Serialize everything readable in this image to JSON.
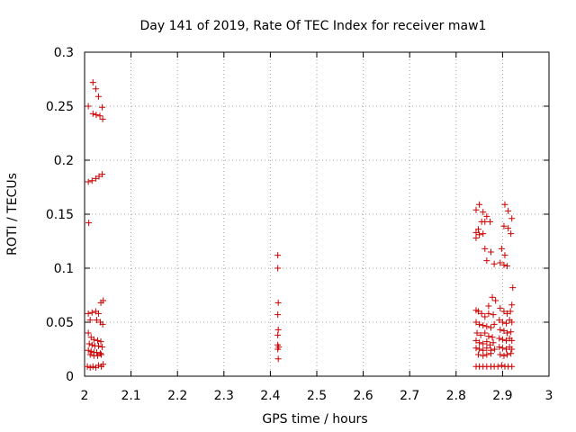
{
  "chart_data": {
    "type": "scatter",
    "title": "Day 141 of 2019, Rate Of TEC Index for receiver maw1",
    "xlabel": "GPS time / hours",
    "ylabel": "ROTI / TECUs",
    "xlim": [
      2,
      3
    ],
    "ylim": [
      0,
      0.3
    ],
    "grid": true,
    "marker": "+",
    "marker_color": "#cc0000",
    "x_ticks": [
      2,
      2.1,
      2.2,
      2.3,
      2.4,
      2.5,
      2.6,
      2.7,
      2.8,
      2.9,
      3
    ],
    "x_tick_labels": [
      "2",
      "2.1",
      "2.2",
      "2.3",
      "2.4",
      "2.5",
      "2.6",
      "2.7",
      "2.8",
      "2.9",
      "3"
    ],
    "y_ticks": [
      0,
      0.05,
      0.1,
      0.15,
      0.2,
      0.25,
      0.3
    ],
    "y_tick_labels": [
      "0",
      "0.05",
      "0.1",
      "0.15",
      "0.2",
      "0.25",
      "0.3"
    ],
    "series": [
      {
        "name": "ROTI",
        "points": [
          [
            2.008,
            0.25
          ],
          [
            2.018,
            0.272
          ],
          [
            2.024,
            0.266
          ],
          [
            2.03,
            0.259
          ],
          [
            2.038,
            0.249
          ],
          [
            2.018,
            0.243
          ],
          [
            2.025,
            0.242
          ],
          [
            2.033,
            0.241
          ],
          [
            2.039,
            0.238
          ],
          [
            2.008,
            0.18
          ],
          [
            2.016,
            0.181
          ],
          [
            2.024,
            0.183
          ],
          [
            2.031,
            0.185
          ],
          [
            2.038,
            0.187
          ],
          [
            2.009,
            0.142
          ],
          [
            2.035,
            0.068
          ],
          [
            2.04,
            0.07
          ],
          [
            2.008,
            0.058
          ],
          [
            2.016,
            0.059
          ],
          [
            2.024,
            0.06
          ],
          [
            2.03,
            0.058
          ],
          [
            2.012,
            0.052
          ],
          [
            2.026,
            0.052
          ],
          [
            2.034,
            0.05
          ],
          [
            2.039,
            0.048
          ],
          [
            2.008,
            0.04
          ],
          [
            2.014,
            0.036
          ],
          [
            2.02,
            0.034
          ],
          [
            2.028,
            0.033
          ],
          [
            2.035,
            0.032
          ],
          [
            2.01,
            0.03
          ],
          [
            2.016,
            0.029
          ],
          [
            2.022,
            0.028
          ],
          [
            2.03,
            0.028
          ],
          [
            2.038,
            0.027
          ],
          [
            2.008,
            0.024
          ],
          [
            2.014,
            0.023
          ],
          [
            2.02,
            0.022
          ],
          [
            2.026,
            0.022
          ],
          [
            2.034,
            0.021
          ],
          [
            2.012,
            0.02
          ],
          [
            2.02,
            0.019
          ],
          [
            2.028,
            0.019
          ],
          [
            2.036,
            0.02
          ],
          [
            2.006,
            0.009
          ],
          [
            2.012,
            0.008
          ],
          [
            2.018,
            0.009
          ],
          [
            2.024,
            0.008
          ],
          [
            2.03,
            0.01
          ],
          [
            2.036,
            0.009
          ],
          [
            2.04,
            0.011
          ],
          [
            2.416,
            0.112
          ],
          [
            2.416,
            0.1
          ],
          [
            2.417,
            0.068
          ],
          [
            2.416,
            0.057
          ],
          [
            2.417,
            0.043
          ],
          [
            2.416,
            0.038
          ],
          [
            2.416,
            0.029
          ],
          [
            2.418,
            0.027
          ],
          [
            2.416,
            0.025
          ],
          [
            2.417,
            0.016
          ],
          [
            2.85,
            0.159
          ],
          [
            2.843,
            0.154
          ],
          [
            2.858,
            0.152
          ],
          [
            2.866,
            0.148
          ],
          [
            2.855,
            0.143
          ],
          [
            2.862,
            0.143
          ],
          [
            2.873,
            0.143
          ],
          [
            2.848,
            0.136
          ],
          [
            2.843,
            0.133
          ],
          [
            2.85,
            0.131
          ],
          [
            2.858,
            0.132
          ],
          [
            2.843,
            0.128
          ],
          [
            2.862,
            0.118
          ],
          [
            2.875,
            0.115
          ],
          [
            2.866,
            0.107
          ],
          [
            2.882,
            0.104
          ],
          [
            2.878,
            0.073
          ],
          [
            2.885,
            0.07
          ],
          [
            2.87,
            0.065
          ],
          [
            2.843,
            0.061
          ],
          [
            2.848,
            0.06
          ],
          [
            2.855,
            0.058
          ],
          [
            2.862,
            0.055
          ],
          [
            2.87,
            0.058
          ],
          [
            2.88,
            0.057
          ],
          [
            2.843,
            0.05
          ],
          [
            2.85,
            0.048
          ],
          [
            2.858,
            0.047
          ],
          [
            2.866,
            0.046
          ],
          [
            2.875,
            0.045
          ],
          [
            2.882,
            0.048
          ],
          [
            2.845,
            0.04
          ],
          [
            2.853,
            0.038
          ],
          [
            2.862,
            0.04
          ],
          [
            2.87,
            0.037
          ],
          [
            2.878,
            0.036
          ],
          [
            2.843,
            0.033
          ],
          [
            2.85,
            0.031
          ],
          [
            2.858,
            0.03
          ],
          [
            2.866,
            0.032
          ],
          [
            2.873,
            0.029
          ],
          [
            2.88,
            0.031
          ],
          [
            2.843,
            0.026
          ],
          [
            2.85,
            0.025
          ],
          [
            2.858,
            0.024
          ],
          [
            2.866,
            0.026
          ],
          [
            2.875,
            0.024
          ],
          [
            2.883,
            0.025
          ],
          [
            2.848,
            0.02
          ],
          [
            2.858,
            0.019
          ],
          [
            2.866,
            0.02
          ],
          [
            2.875,
            0.021
          ],
          [
            2.843,
            0.009
          ],
          [
            2.85,
            0.009
          ],
          [
            2.858,
            0.009
          ],
          [
            2.866,
            0.009
          ],
          [
            2.875,
            0.009
          ],
          [
            2.882,
            0.009
          ],
          [
            2.89,
            0.009
          ],
          [
            2.905,
            0.159
          ],
          [
            2.912,
            0.153
          ],
          [
            2.92,
            0.146
          ],
          [
            2.903,
            0.139
          ],
          [
            2.912,
            0.137
          ],
          [
            2.918,
            0.132
          ],
          [
            2.898,
            0.118
          ],
          [
            2.905,
            0.112
          ],
          [
            2.895,
            0.105
          ],
          [
            2.903,
            0.103
          ],
          [
            2.91,
            0.102
          ],
          [
            2.922,
            0.082
          ],
          [
            2.92,
            0.066
          ],
          [
            2.895,
            0.063
          ],
          [
            2.903,
            0.06
          ],
          [
            2.91,
            0.058
          ],
          [
            2.917,
            0.06
          ],
          [
            2.893,
            0.052
          ],
          [
            2.9,
            0.05
          ],
          [
            2.908,
            0.049
          ],
          [
            2.915,
            0.052
          ],
          [
            2.92,
            0.05
          ],
          [
            2.895,
            0.043
          ],
          [
            2.903,
            0.042
          ],
          [
            2.91,
            0.04
          ],
          [
            2.918,
            0.041
          ],
          [
            2.893,
            0.035
          ],
          [
            2.9,
            0.034
          ],
          [
            2.908,
            0.033
          ],
          [
            2.915,
            0.035
          ],
          [
            2.92,
            0.033
          ],
          [
            2.893,
            0.027
          ],
          [
            2.9,
            0.026
          ],
          [
            2.908,
            0.025
          ],
          [
            2.915,
            0.027
          ],
          [
            2.92,
            0.025
          ],
          [
            2.895,
            0.02
          ],
          [
            2.903,
            0.019
          ],
          [
            2.91,
            0.02
          ],
          [
            2.918,
            0.021
          ],
          [
            2.898,
            0.01
          ],
          [
            2.905,
            0.009
          ],
          [
            2.912,
            0.009
          ],
          [
            2.92,
            0.009
          ]
        ]
      }
    ]
  }
}
